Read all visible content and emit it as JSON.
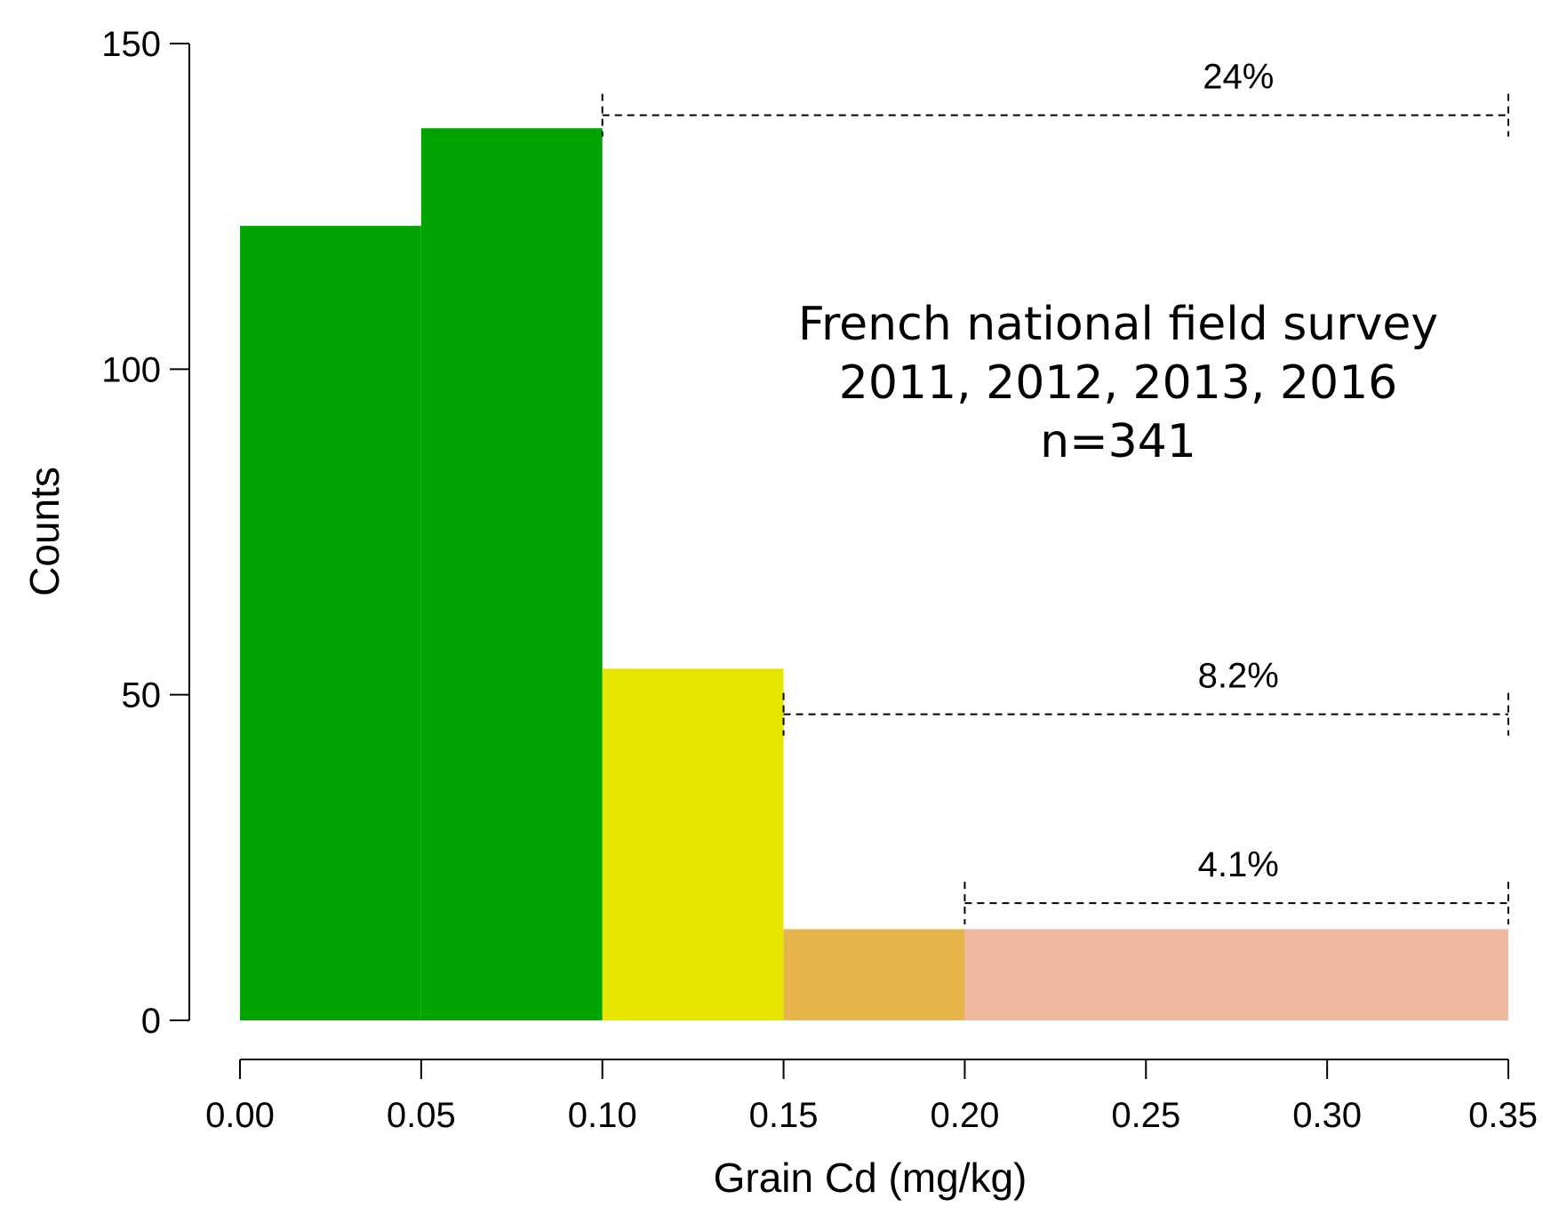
{
  "chart_data": {
    "type": "bar",
    "title": "",
    "xlabel": "Grain Cd (mg/kg)",
    "ylabel": "Counts",
    "xlim": [
      0.0,
      0.35
    ],
    "ylim": [
      0,
      150
    ],
    "x_ticks": [
      "0.00",
      "0.05",
      "0.10",
      "0.15",
      "0.20",
      "0.25",
      "0.30",
      "0.35"
    ],
    "y_ticks": [
      "0",
      "50",
      "100",
      "150"
    ],
    "bins": [
      {
        "x0": 0.0,
        "x1": 0.05,
        "count": 122,
        "color": "#00a400"
      },
      {
        "x0": 0.05,
        "x1": 0.1,
        "count": 137,
        "color": "#00a400"
      },
      {
        "x0": 0.1,
        "x1": 0.15,
        "count": 54,
        "color": "#e6e600"
      },
      {
        "x0": 0.15,
        "x1": 0.2,
        "count": 14,
        "color": "#e6b44a"
      },
      {
        "x0": 0.2,
        "x1": 0.35,
        "count": 14,
        "color": "#eeb99f"
      }
    ],
    "annotation_lines": [
      "French national field survey",
      "2011, 2012, 2013, 2016",
      "n=341"
    ],
    "brackets": [
      {
        "label": "24%",
        "x_from": 0.1,
        "x_to": 0.35,
        "y": 139
      },
      {
        "label": "8.2%",
        "x_from": 0.15,
        "x_to": 0.35,
        "y": 47
      },
      {
        "label": "4.1%",
        "x_from": 0.2,
        "x_to": 0.35,
        "y": 18
      }
    ],
    "grid": false,
    "legend": "none"
  }
}
